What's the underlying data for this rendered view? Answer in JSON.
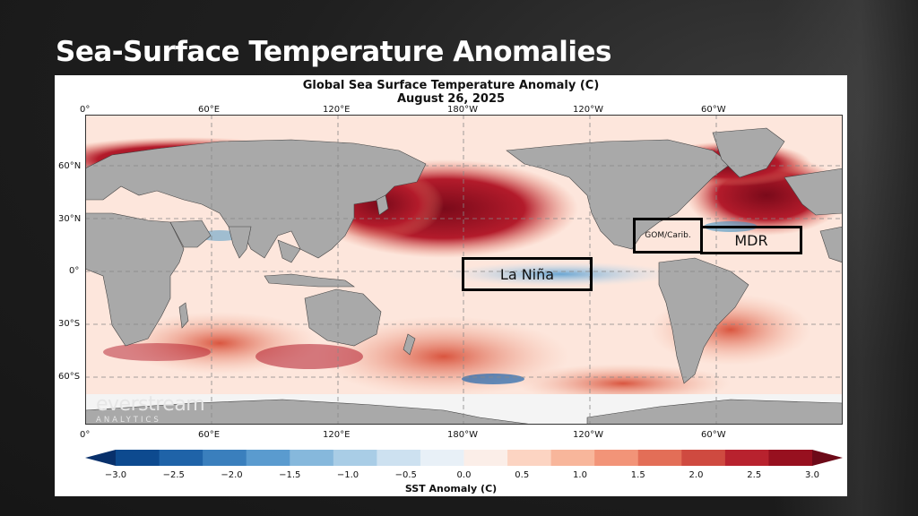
{
  "slide": {
    "title": "Sea-Surface Temperature Anomalies"
  },
  "map": {
    "title_line1": "Global Sea Surface Temperature Anomaly (C)",
    "title_line2": "August 26, 2025",
    "lon_ticks": [
      "0°",
      "60°E",
      "120°E",
      "180°W",
      "120°W",
      "60°W"
    ],
    "lat_ticks": [
      "60°N",
      "30°N",
      "0°",
      "30°S",
      "60°S"
    ],
    "colors": {
      "land": "#a9a9a9",
      "ocean_base": "#fde6dc",
      "warm_strong": "#8b0a1e",
      "warm": "#d6604d",
      "cool": "#4393c3",
      "ice": "#f4f4f4"
    }
  },
  "annotations": {
    "la_nina": "La Niña",
    "gom": "GOM/Carib.",
    "mdr": "MDR"
  },
  "logo": {
    "name": "everstream",
    "sub": "ANALYTICS"
  },
  "colorbar": {
    "label": "SST Anomaly (C)",
    "ticks": [
      "−3.0",
      "−2.5",
      "−2.0",
      "−1.5",
      "−1.0",
      "−0.5",
      "0.0",
      "0.5",
      "1.0",
      "1.5",
      "2.0",
      "2.5",
      "3.0"
    ],
    "colors": [
      "#08306b",
      "#0d4a8f",
      "#1f63a8",
      "#3a7fbd",
      "#5a9bcf",
      "#86b8dc",
      "#a9cde6",
      "#cde1f0",
      "#e8f0f7",
      "#fbeee8",
      "#fcd4c2",
      "#f8b69b",
      "#f29478",
      "#e36e57",
      "#cf4a40",
      "#b8222e",
      "#97101f",
      "#6d0a18"
    ]
  }
}
